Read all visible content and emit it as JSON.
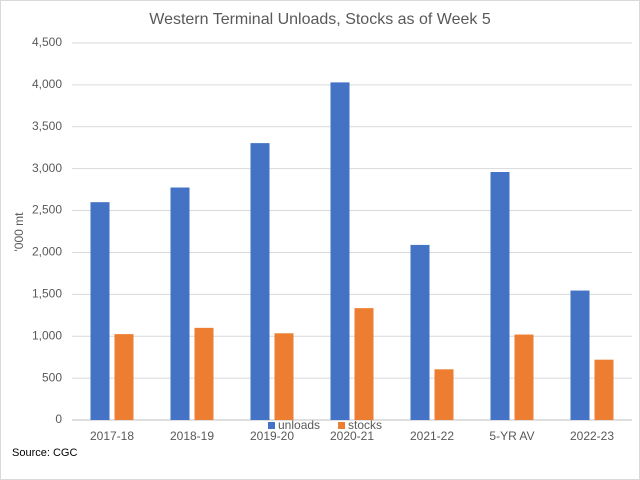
{
  "chart_data": {
    "type": "bar",
    "title": "Western Terminal Unloads, Stocks as of Week 5",
    "y_label": "'000 mt",
    "source": "Source: CGC",
    "categories": [
      "2017-18",
      "2018-19",
      "2019-20",
      "2020-21",
      "2021-22",
      "5-YR AV",
      "2022-23"
    ],
    "series": [
      {
        "name": "unloads",
        "color": "#4472c4",
        "values": [
          2600,
          2775,
          3305,
          4030,
          2090,
          2960,
          1545
        ]
      },
      {
        "name": "stocks",
        "color": "#ed7d31",
        "values": [
          1025,
          1100,
          1035,
          1335,
          605,
          1020,
          720
        ]
      }
    ],
    "ylim": [
      0,
      4500
    ],
    "yticks": [
      0,
      500,
      {
        "value": 1000,
        "label": "1,000"
      },
      {
        "value": 1500,
        "label": "1,500"
      },
      {
        "value": 2000,
        "label": "2,000"
      },
      {
        "value": 2500,
        "label": "2,500"
      },
      {
        "value": 3000,
        "label": "3,000"
      },
      {
        "value": 3500,
        "label": "3,500"
      },
      {
        "value": 4000,
        "label": "4,000"
      },
      {
        "value": 4500,
        "label": "4,500"
      }
    ],
    "grid": true,
    "legend": "bottom"
  }
}
